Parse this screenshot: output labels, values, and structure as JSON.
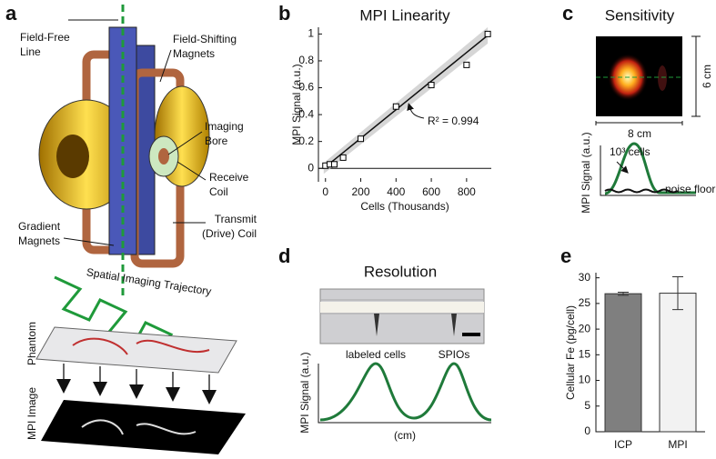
{
  "panel_a": {
    "letter": "a",
    "labels": [
      [
        "Field-Free",
        "Line"
      ],
      [
        "Field-Shifting",
        "Magnets"
      ],
      [
        "Imaging",
        "Bore"
      ],
      [
        "Receive",
        "Coil"
      ],
      [
        "Transmit",
        "(Drive) Coil"
      ],
      [
        "Gradient",
        "Magnets"
      ]
    ],
    "trajectory_label": "Spatial Imaging Trajectory",
    "phantom_label": "Phantom",
    "image_label": "MPI Image"
  },
  "panel_c": {
    "letter": "c",
    "title": "Sensitivity",
    "width_label": "8 cm",
    "height_label": "6 cm",
    "y_label": "MPI Signal (a.u.)",
    "cells_label": "10³ cells",
    "noise_label": "noise floor"
  },
  "panel_d": {
    "letter": "d",
    "title": "Resolution",
    "labels": [
      "labeled cells",
      "SPIOs"
    ],
    "y_label": "MPI Signal (a.u.)",
    "x_label": "(cm)"
  },
  "chart_data": [
    {
      "type": "scatter",
      "letter": "b",
      "title": "MPI Linearity",
      "x_label": "Cells (Thousands)",
      "y_label": "MPI Signal (a.u.)",
      "annotation": "R² = 0.994",
      "x": [
        0,
        25,
        50,
        100,
        200,
        400,
        600,
        800,
        920
      ],
      "values": [
        0.02,
        0.03,
        0.03,
        0.08,
        0.22,
        0.46,
        0.62,
        0.77,
        1.0
      ],
      "fit": {
        "x": [
          -10,
          920
        ],
        "y": [
          0.0,
          0.99
        ]
      },
      "color": "#000000",
      "xlim": [
        -40,
        940
      ],
      "ylim": [
        -0.1,
        1.05
      ],
      "xticks": [
        0,
        200,
        400,
        600,
        800
      ],
      "yticks": [
        0,
        0.2,
        0.4,
        0.6,
        0.8,
        1
      ]
    },
    {
      "type": "bar",
      "letter": "e",
      "y_label": "Cellular Fe (pg/cell)",
      "categories": [
        "ICP",
        "MPI"
      ],
      "values": [
        26.9,
        27
      ],
      "errors": [
        0.3,
        3.2
      ],
      "colors": [
        "#7f7f7f",
        "#f2f2f2"
      ],
      "ylim": [
        0,
        31
      ],
      "yticks": [
        0,
        5,
        10,
        15,
        20,
        25,
        30
      ]
    }
  ]
}
